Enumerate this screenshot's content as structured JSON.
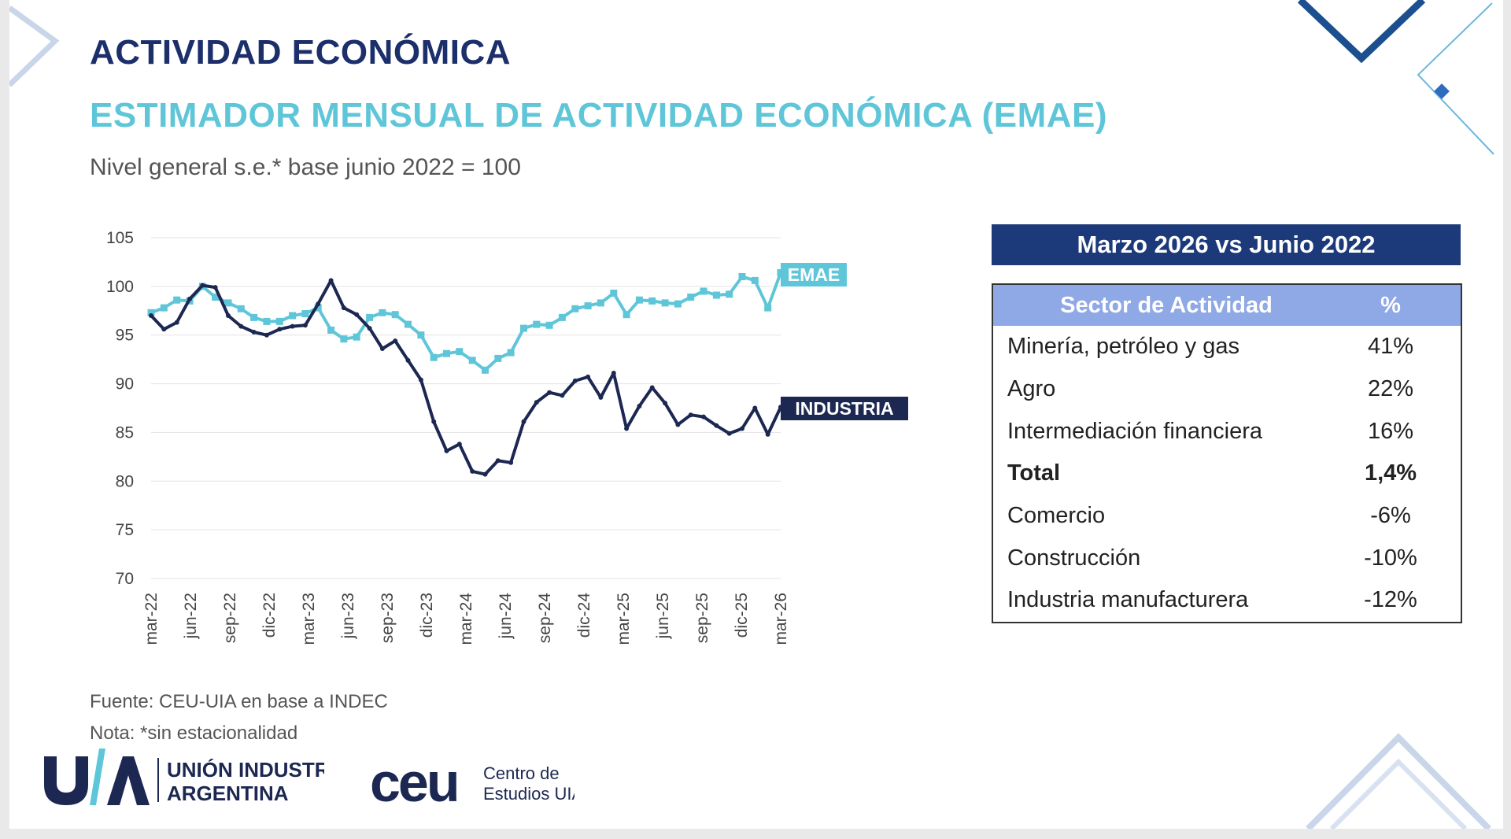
{
  "header": {
    "title": "ACTIVIDAD ECONÓMICA",
    "subtitle": "ESTIMADOR MENSUAL DE ACTIVIDAD ECONÓMICA (EMAE)",
    "caption": "Nivel general s.e.* base junio 2022 = 100"
  },
  "chart_data": {
    "type": "line",
    "ylim": [
      70,
      105
    ],
    "yticks": [
      "105",
      "100",
      "95",
      "90",
      "85",
      "80",
      "75",
      "70"
    ],
    "x_tick_labels": [
      "mar-22",
      "jun-22",
      "sep-22",
      "dic-22",
      "mar-23",
      "jun-23",
      "sep-23",
      "dic-23",
      "mar-24",
      "jun-24",
      "sep-24",
      "dic-24",
      "mar-25",
      "jun-25",
      "sep-25",
      "dic-25",
      "mar-26"
    ],
    "x_first": "mar-22",
    "x_last": "mar-26",
    "series": [
      {
        "name": "EMAE",
        "color": "#5ec6d8",
        "values": [
          97.3,
          97.8,
          98.6,
          98.5,
          100.0,
          98.9,
          98.3,
          97.7,
          96.8,
          96.4,
          96.4,
          97.0,
          97.2,
          97.8,
          95.5,
          94.6,
          94.8,
          96.8,
          97.3,
          97.1,
          96.1,
          95.0,
          92.7,
          93.1,
          93.3,
          92.4,
          91.4,
          92.6,
          93.2,
          95.7,
          96.1,
          96.0,
          96.8,
          97.7,
          98.0,
          98.3,
          99.3,
          97.1,
          98.6,
          98.5,
          98.3,
          98.2,
          98.9,
          99.5,
          99.1,
          99.2,
          101.0,
          100.6,
          97.8,
          101.4
        ]
      },
      {
        "name": "INDUSTRIA",
        "color": "#1c2752",
        "values": [
          97.0,
          95.6,
          96.3,
          98.7,
          100.1,
          99.9,
          97.0,
          95.9,
          95.3,
          95.0,
          95.6,
          95.9,
          96.0,
          98.2,
          100.6,
          97.8,
          97.1,
          95.7,
          93.6,
          94.4,
          92.4,
          90.4,
          86.1,
          83.1,
          83.8,
          81.0,
          80.7,
          82.1,
          81.9,
          86.1,
          88.1,
          89.1,
          88.8,
          90.3,
          90.7,
          88.6,
          91.1,
          85.4,
          87.7,
          89.6,
          88.0,
          85.8,
          86.8,
          86.6,
          85.7,
          84.9,
          85.4,
          87.5,
          84.8,
          87.6
        ]
      }
    ],
    "labels": {
      "emae": "EMAE",
      "industria": "INDUSTRIA"
    }
  },
  "table": {
    "title": "Marzo 2026 vs Junio 2022",
    "col_sector": "Sector de Actividad",
    "col_pct": "%",
    "rows": [
      {
        "sector": "Minería, petróleo y gas",
        "pct": "41%"
      },
      {
        "sector": "Agro",
        "pct": "22%"
      },
      {
        "sector": "Intermediación financiera",
        "pct": "16%"
      },
      {
        "sector": "Total",
        "pct": "1,4%"
      },
      {
        "sector": "Comercio",
        "pct": "-6%"
      },
      {
        "sector": "Construcción",
        "pct": "-10%"
      },
      {
        "sector": "Industria manufacturera",
        "pct": "-12%"
      }
    ]
  },
  "footer": {
    "source": "Fuente: CEU-UIA en base a INDEC",
    "note": "Nota: *sin estacionalidad"
  },
  "logos": {
    "uia_line1": "UNIÓN INDUSTRIAL",
    "uia_line2": "ARGENTINA",
    "ceu_mark": "ceu",
    "ceu_line1": "Centro de",
    "ceu_line2": "Estudios UIA"
  }
}
